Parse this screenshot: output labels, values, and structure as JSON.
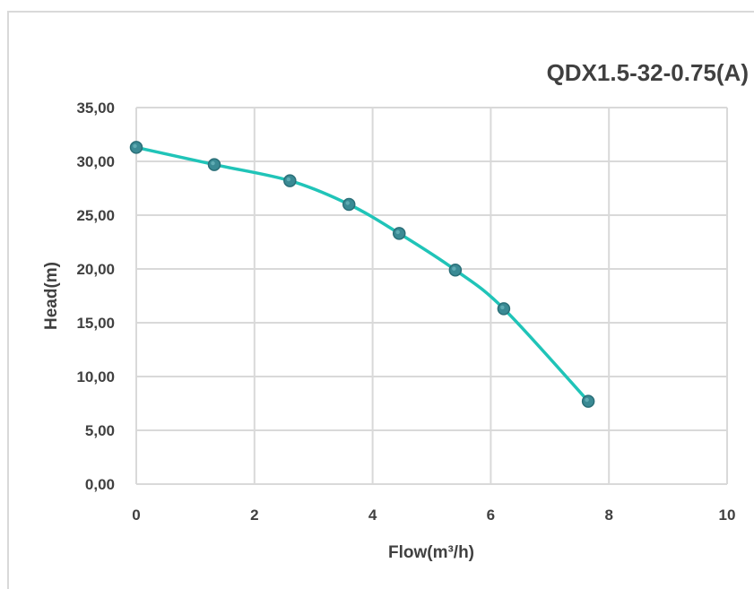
{
  "chart_data": {
    "type": "line",
    "title": "QDX1.5-32-0.75(A)",
    "xlabel": "Flow(m³/h)",
    "ylabel": "Head(m)",
    "xlim": [
      0,
      10
    ],
    "ylim": [
      0,
      35
    ],
    "x_ticks": [
      "0",
      "2",
      "4",
      "6",
      "8",
      "10"
    ],
    "y_ticks": [
      "0,00",
      "5,00",
      "10,00",
      "15,00",
      "20,00",
      "25,00",
      "30,00",
      "35,00"
    ],
    "grid": true,
    "legend": "none",
    "series": [
      {
        "x": [
          0,
          1.32,
          2.6,
          3.6,
          4.45,
          5.4,
          6.22,
          7.65
        ],
        "y": [
          31.3,
          29.7,
          28.2,
          26.0,
          23.3,
          19.9,
          16.3,
          7.7
        ]
      }
    ],
    "colors": {
      "line": "#20c4b8",
      "marker_fill": "#3a8a94",
      "marker_edge": "#2a6f78",
      "grid": "#d9d9d9"
    }
  }
}
